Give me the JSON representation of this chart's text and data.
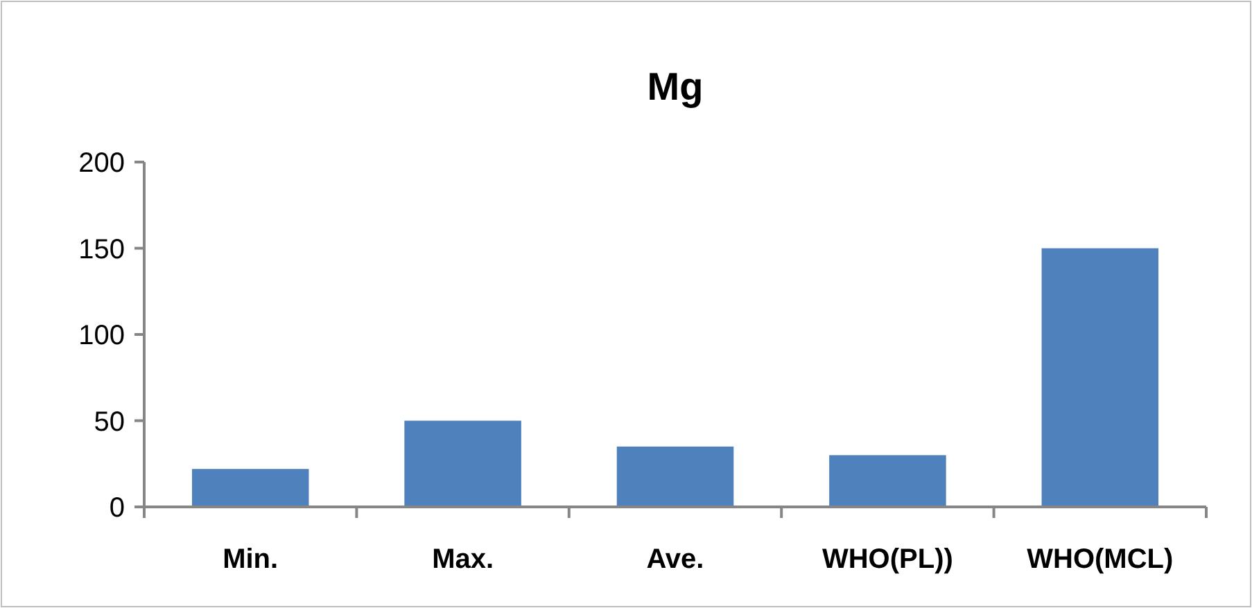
{
  "chart_data": {
    "type": "bar",
    "title": "Mg",
    "categories": [
      "Min.",
      "Max.",
      "Ave.",
      "WHO(PL))",
      "WHO(MCL)"
    ],
    "values": [
      22,
      50,
      35,
      30,
      150
    ],
    "color": "#4f81bd",
    "ylim": [
      0,
      200
    ],
    "yticks": [
      0,
      50,
      100,
      150,
      200
    ],
    "grid": false
  }
}
